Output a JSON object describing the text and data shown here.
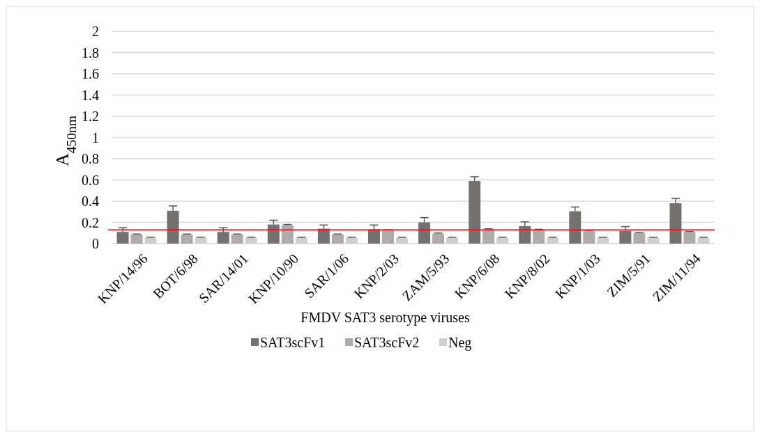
{
  "chart_data": {
    "type": "bar",
    "xlabel": "FMDV SAT3 serotype viruses",
    "ylabel": "A$_{450nm}$",
    "categories": [
      "KNP/14/96",
      "BOT/6/98",
      "SAR/14/01",
      "KNP/10/90",
      "SAR/1/06",
      "KNP/2/03",
      "ZAM/5/93",
      "KNP/6/08",
      "KNP/8/02",
      "KNP/1/03",
      "ZIM/5/91",
      "ZIM/11/94"
    ],
    "series": [
      {
        "name": "SAT3scFv1",
        "color": "#767171",
        "values": [
          0.11,
          0.31,
          0.11,
          0.18,
          0.14,
          0.135,
          0.2,
          0.59,
          0.165,
          0.305,
          0.12,
          0.38
        ],
        "errors": [
          0.04,
          0.045,
          0.04,
          0.04,
          0.035,
          0.04,
          0.045,
          0.04,
          0.04,
          0.04,
          0.04,
          0.045
        ]
      },
      {
        "name": "SAT3scFv2",
        "color": "#afabab",
        "values": [
          0.085,
          0.085,
          0.085,
          0.175,
          0.085,
          0.125,
          0.095,
          0.135,
          0.13,
          0.12,
          0.1,
          0.11
        ],
        "errors": [
          0.005,
          0.005,
          0.005,
          0.005,
          0.005,
          0.005,
          0.005,
          0.005,
          0.005,
          0.005,
          0.005,
          0.005
        ]
      },
      {
        "name": "Neg",
        "color": "#d0cece",
        "values": [
          0.055,
          0.055,
          0.055,
          0.055,
          0.055,
          0.055,
          0.055,
          0.055,
          0.055,
          0.055,
          0.055,
          0.055
        ],
        "errors": [
          0.005,
          0.005,
          0.005,
          0.005,
          0.005,
          0.005,
          0.005,
          0.005,
          0.005,
          0.005,
          0.005,
          0.005
        ]
      }
    ],
    "ylim": [
      0,
      2
    ],
    "yticks": [
      0,
      {
        "value": 0.2,
        "label": "0.2"
      },
      {
        "value": 0.4,
        "label": "0.4"
      },
      {
        "value": 0.6,
        "label": "0.6"
      },
      {
        "value": 0.8,
        "label": "0.8"
      },
      1,
      {
        "value": 1.2,
        "label": "1.2"
      },
      {
        "value": 1.4,
        "label": "1.4"
      },
      {
        "value": 1.6,
        "label": "1.6"
      },
      {
        "value": 1.8,
        "label": "1.8"
      },
      2
    ],
    "grid": "y",
    "legend": "bottom",
    "ref_lines": [
      {
        "axis": "y",
        "value": 0.13,
        "color": "#ff0000"
      }
    ]
  }
}
